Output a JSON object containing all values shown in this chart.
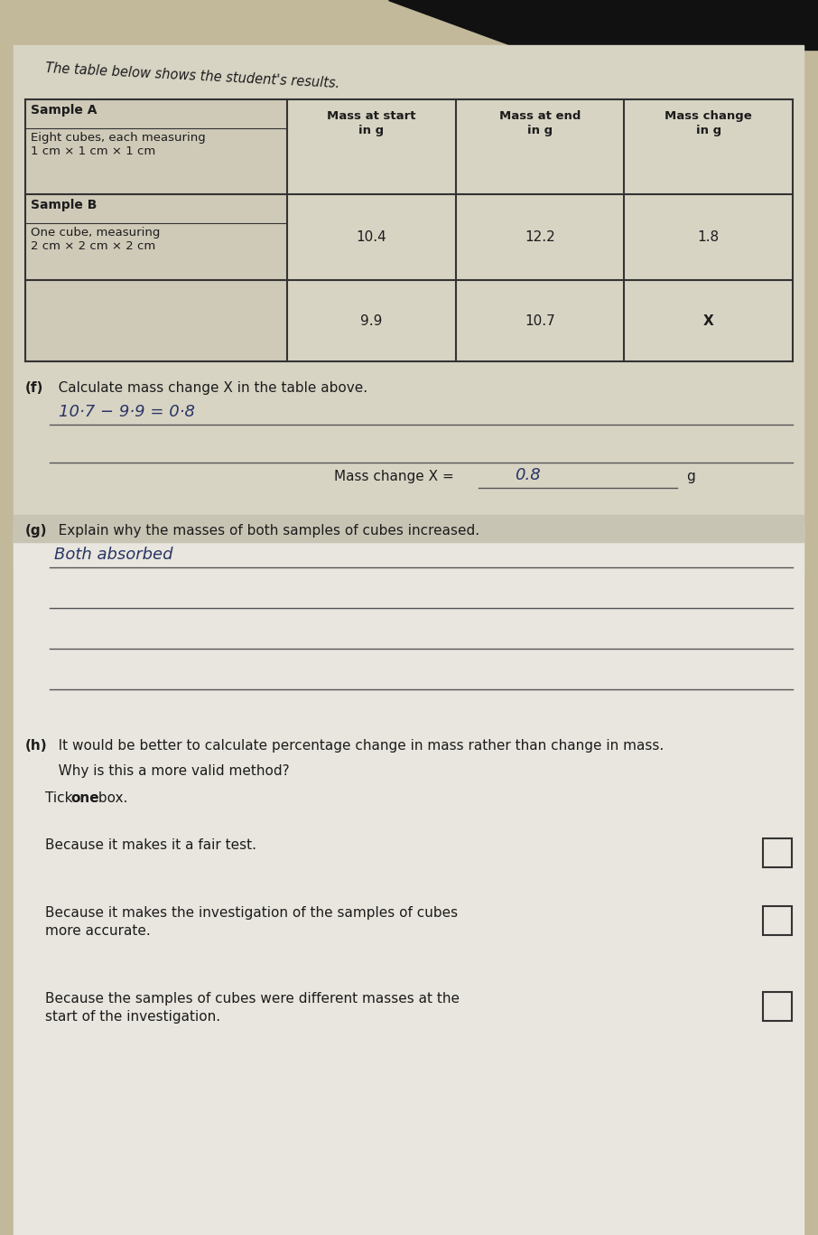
{
  "header_text": "The table below shows the student's results.",
  "table": {
    "col_headers_line1": [
      "Mass at start",
      "Mass at end",
      "Mass change"
    ],
    "col_headers_line2": [
      "in g",
      "in g",
      "in g"
    ],
    "row1_label1": "Sample A",
    "row1_label2": "Eight cubes, each measuring\n1 cm × 1 cm × 1 cm",
    "row1_data": [
      "10.4",
      "12.2",
      "1.8"
    ],
    "row2_label1": "Sample B",
    "row2_label2": "One cube, measuring\n2 cm × 2 cm × 2 cm",
    "row2_data": [
      "9.9",
      "10.7",
      "X"
    ]
  },
  "section_f": {
    "label": "(f)",
    "question": "   Calculate mass change X in the table above.",
    "working": "10·7 − 9·9 = 0·8",
    "answer_label": "Mass change X = ",
    "answer_value": "0.8",
    "answer_unit": "g"
  },
  "section_g": {
    "label": "(g)",
    "question": "   Explain why the masses of both samples of cubes increased.",
    "answer_line1": "Both absorbed"
  },
  "section_h": {
    "label": "(h)",
    "question": "   It would be better to calculate percentage change in mass rather than change in mass.",
    "subquestion": "   Why is this a more valid method?",
    "tick_instruction_pre": "Tick ",
    "tick_instruction_bold": "one",
    "tick_instruction_post": " box.",
    "option1": "Because it makes it a fair test.",
    "option2_line1": "Because it makes the investigation of the samples of cubes",
    "option2_line2": "more accurate.",
    "option3_line1": "Because the samples of cubes were different masses at the",
    "option3_line2": "start of the investigation."
  },
  "bg_top_color": "#c2b89a",
  "bg_bottom_color": "#ccc5b0",
  "page_color_upper": "#d8d4c4",
  "page_color_lower": "#e8e6de",
  "black_corner": "#111111",
  "font_color": "#1c1c1c",
  "hand_color": "#2a3565",
  "line_color": "#555555",
  "border_color": "#333333"
}
